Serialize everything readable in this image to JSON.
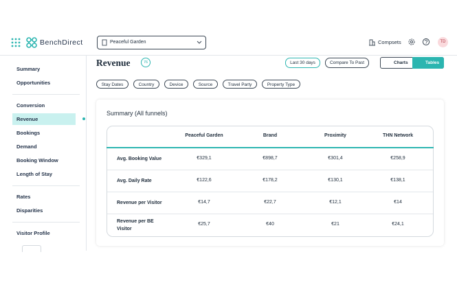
{
  "header": {
    "brand": "BenchDirect",
    "property_select": "Peaceful Garden",
    "compsets": "Compsets",
    "avatar": "TD"
  },
  "sidebar": {
    "sections": [
      [
        "Summary",
        "Opportunities"
      ],
      [
        "Conversion",
        "Revenue",
        "Bookings",
        "Demand",
        "Booking Window",
        "Length of Stay"
      ],
      [
        "Rates",
        "Disparities"
      ],
      [
        "Visitor Profile"
      ]
    ]
  },
  "main": {
    "title": "Revenue",
    "score": "76",
    "period_button": "Last 30 days",
    "compare_button": "Compare To Past",
    "view_toggle": [
      "Charts",
      "Tables"
    ],
    "filters": [
      "Stay Dates",
      "Country",
      "Device",
      "Source",
      "Travel Party",
      "Property Type"
    ],
    "card": {
      "title": "Summary (All funnels)",
      "table": {
        "columns": [
          "Peaceful Garden",
          "Brand",
          "Proximity",
          "THN Network"
        ],
        "rows": [
          [
            "Avg. Booking Value",
            "€329,1",
            "€898,7",
            "€301,4",
            "€258,9"
          ],
          [
            "Avg. Daily Rate",
            "€122,6",
            "€178,2",
            "€130,1",
            "€138,1"
          ],
          [
            "Revenue per Visitor",
            "€14,7",
            "€22,7",
            "€12,1",
            "€14"
          ],
          [
            "Revenue per BE Visitor",
            "€25,7",
            "€40",
            "€21",
            "€24,1"
          ]
        ]
      }
    }
  }
}
